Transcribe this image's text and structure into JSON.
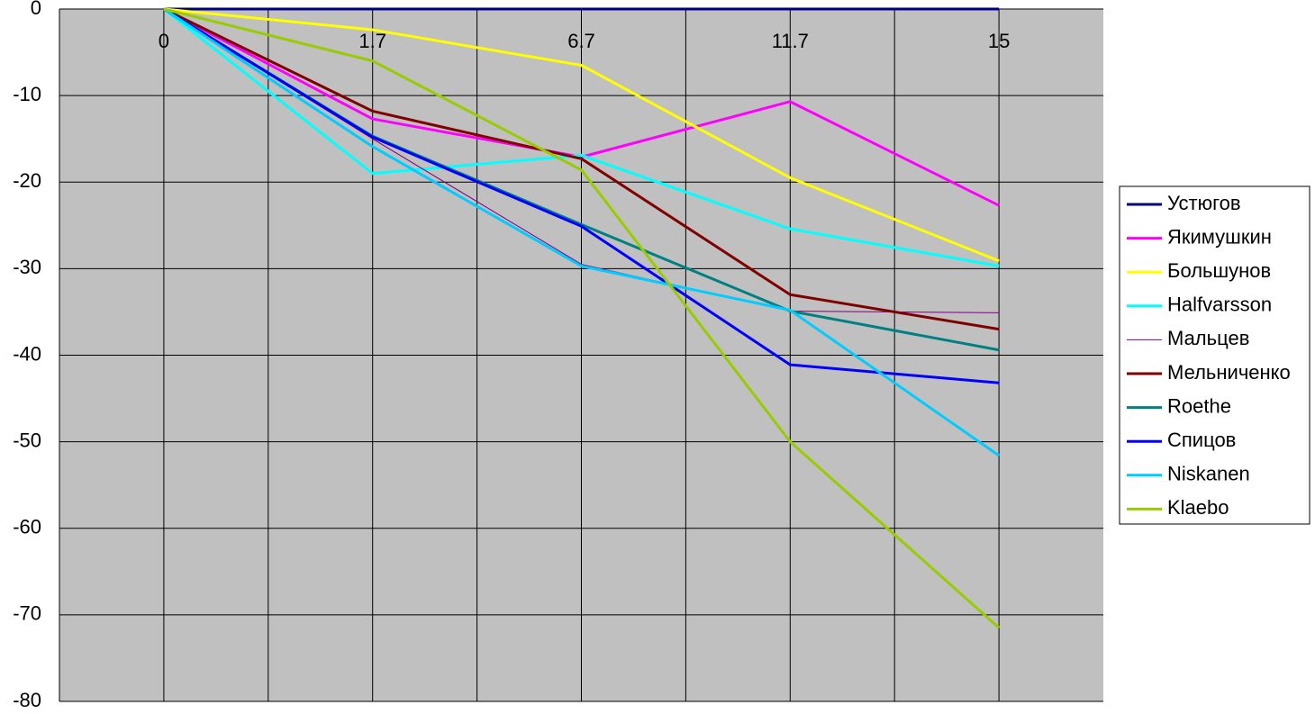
{
  "chart_data": {
    "type": "line",
    "categories": [
      "0",
      "1.7",
      "6.7",
      "11.7",
      "15"
    ],
    "ylim": [
      -80,
      0
    ],
    "yticks": [
      0,
      -10,
      -20,
      -30,
      -40,
      -50,
      -60,
      -70,
      -80
    ],
    "grid": true,
    "series": [
      {
        "name": "Устюгов",
        "color": "#000080",
        "width": 3,
        "values": [
          0,
          0,
          0,
          0,
          0
        ]
      },
      {
        "name": "Якимушкин",
        "color": "#ff00ff",
        "width": 3,
        "values": [
          0,
          -12.7,
          -17.1,
          -10.7,
          -22.7
        ]
      },
      {
        "name": "Большунов",
        "color": "#ffff00",
        "width": 3,
        "values": [
          0,
          -2.4,
          -6.5,
          -19.5,
          -29.1
        ]
      },
      {
        "name": "Halfvarsson",
        "color": "#00ffff",
        "width": 3,
        "values": [
          0,
          -19.0,
          -16.9,
          -25.4,
          -29.7
        ]
      },
      {
        "name": "Мальцев",
        "color": "#800080",
        "width": 1,
        "values": [
          0,
          -15.0,
          -29.5,
          -34.9,
          -35.1
        ]
      },
      {
        "name": "Мельниченко",
        "color": "#800000",
        "width": 3,
        "values": [
          0,
          -11.8,
          -17.3,
          -33.0,
          -37.0
        ]
      },
      {
        "name": "Roethe",
        "color": "#008080",
        "width": 3,
        "values": [
          0,
          -14.7,
          -24.9,
          -34.9,
          -39.4
        ]
      },
      {
        "name": "Спицов",
        "color": "#0000ff",
        "width": 3,
        "values": [
          0,
          -14.8,
          -25.1,
          -41.1,
          -43.2
        ]
      },
      {
        "name": "Niskanen",
        "color": "#00ccff",
        "width": 3,
        "values": [
          0,
          -15.9,
          -29.7,
          -34.8,
          -51.6
        ]
      },
      {
        "name": "Klaebo",
        "color": "#99cc00",
        "width": 3,
        "values": [
          0,
          -6.0,
          -18.6,
          -50.0,
          -71.5
        ]
      }
    ]
  }
}
